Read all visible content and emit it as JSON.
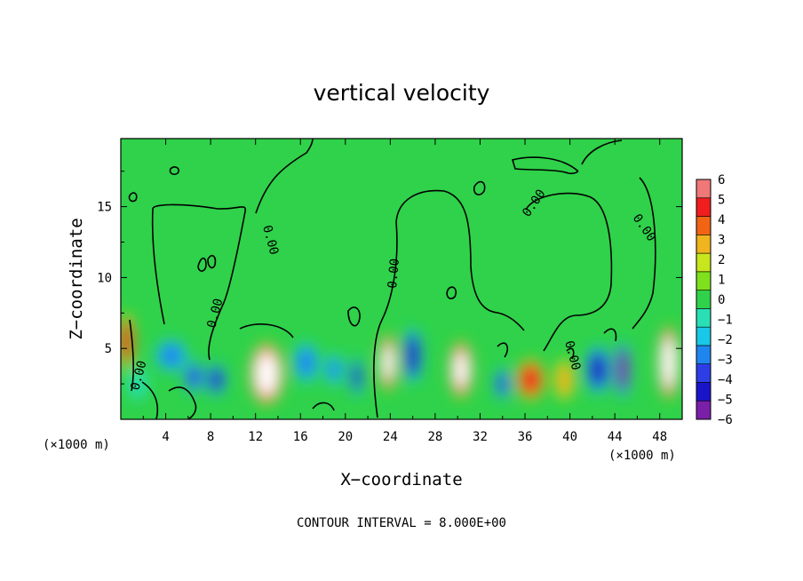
{
  "chart_data": {
    "type": "heatmap",
    "title": "vertical velocity",
    "xlabel": "X−coordinate",
    "ylabel": "Z−coordinate",
    "x_units_left": "(×1000 m)",
    "x_units_right": "(×1000 m)",
    "footer": "CONTOUR INTERVAL = 8.000E+00",
    "contour_label": "0.00",
    "xlim": [
      0,
      50
    ],
    "ylim": [
      0,
      19.8
    ],
    "x_ticks": [
      4,
      8,
      12,
      16,
      20,
      24,
      28,
      32,
      36,
      40,
      44,
      48
    ],
    "y_ticks": [
      5,
      10,
      15
    ],
    "colorbar": {
      "levels": [
        -6,
        -5,
        -4,
        -3,
        -2,
        -1,
        0,
        1,
        2,
        3,
        4,
        5,
        6
      ],
      "colors": [
        "#7a1fa8",
        "#1a14c8",
        "#2d3ee6",
        "#1f86f0",
        "#19c8e6",
        "#28e0b4",
        "#2fd24a",
        "#7fe01e",
        "#c8e61e",
        "#f0b41e",
        "#f06414",
        "#f01e1e",
        "#f07878"
      ]
    },
    "features": [
      {
        "x": 0.5,
        "z": 5.5,
        "w": 1.2,
        "h": 3.5,
        "value": 5
      },
      {
        "x": 1.5,
        "z": 2.5,
        "w": 1.5,
        "h": 2.0,
        "value": -1.5
      },
      {
        "x": 4.5,
        "z": 4.5,
        "w": 2.5,
        "h": 2.0,
        "value": -3.5
      },
      {
        "x": 6.5,
        "z": 3.0,
        "w": 1.5,
        "h": 2.0,
        "value": -4.5
      },
      {
        "x": 8.5,
        "z": 2.8,
        "w": 1.5,
        "h": 2.0,
        "value": -5.5
      },
      {
        "x": 13.0,
        "z": 3.2,
        "w": 2.6,
        "h": 3.8,
        "value": 8
      },
      {
        "x": 16.5,
        "z": 4.0,
        "w": 2.0,
        "h": 2.5,
        "value": -3.5
      },
      {
        "x": 19.0,
        "z": 3.5,
        "w": 1.5,
        "h": 2.0,
        "value": -3
      },
      {
        "x": 21.0,
        "z": 3.0,
        "w": 1.0,
        "h": 2.5,
        "value": -5
      },
      {
        "x": 23.8,
        "z": 4.0,
        "w": 1.4,
        "h": 3.5,
        "value": 7
      },
      {
        "x": 26.0,
        "z": 4.5,
        "w": 1.5,
        "h": 3.5,
        "value": -6
      },
      {
        "x": 30.3,
        "z": 3.5,
        "w": 1.8,
        "h": 3.5,
        "value": 7
      },
      {
        "x": 34.0,
        "z": 2.5,
        "w": 1.2,
        "h": 2.0,
        "value": -4.5
      },
      {
        "x": 36.5,
        "z": 2.8,
        "w": 2.2,
        "h": 2.5,
        "value": 4.5
      },
      {
        "x": 39.5,
        "z": 2.8,
        "w": 1.5,
        "h": 2.5,
        "value": 3
      },
      {
        "x": 42.5,
        "z": 3.5,
        "w": 2.0,
        "h": 3.0,
        "value": -6
      },
      {
        "x": 44.7,
        "z": 3.5,
        "w": 1.3,
        "h": 3.5,
        "value": -7
      },
      {
        "x": 48.8,
        "z": 4.0,
        "w": 1.6,
        "h": 4.5,
        "value": 9
      }
    ]
  }
}
